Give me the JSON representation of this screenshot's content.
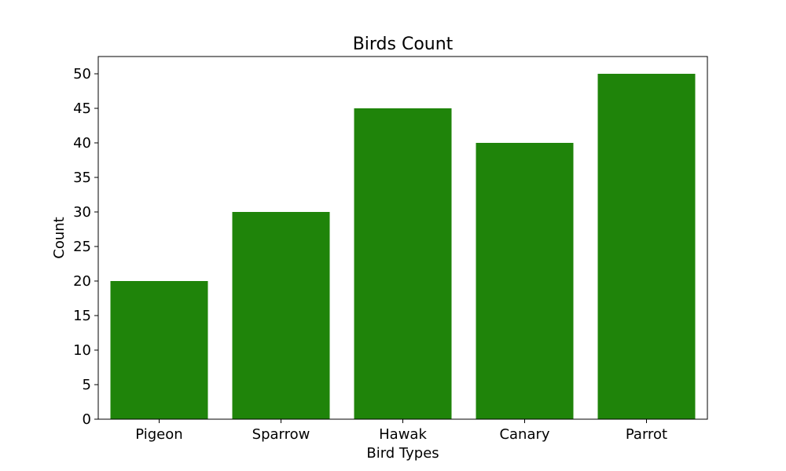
{
  "chart_data": {
    "type": "bar",
    "title": "Birds Count",
    "xlabel": "Bird Types",
    "ylabel": "Count",
    "categories": [
      "Pigeon",
      "Sparrow",
      "Hawak",
      "Canary",
      "Parrot"
    ],
    "values": [
      20,
      30,
      45,
      40,
      50
    ],
    "ylim": [
      0,
      52.5
    ],
    "yticks": [
      0,
      5,
      10,
      15,
      20,
      25,
      30,
      35,
      40,
      45,
      50
    ],
    "bar_color": "#1f840a",
    "grid": false,
    "legend": "none"
  }
}
